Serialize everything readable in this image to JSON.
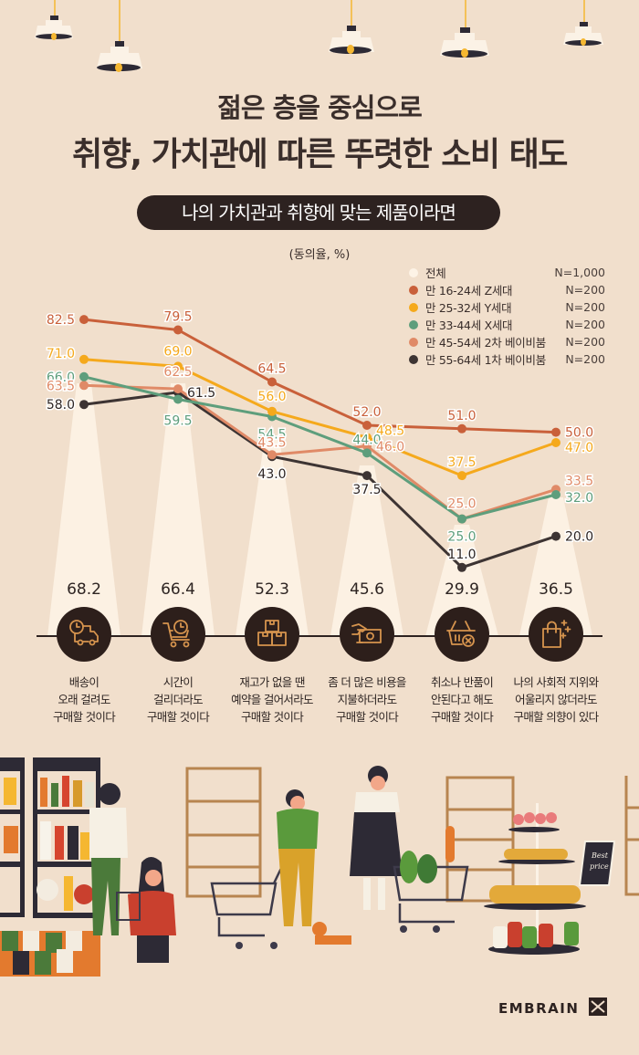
{
  "header": {
    "title_line1": "젊은 층을 중심으로",
    "title_line2": "취향, 가치관에 따른 뚜렷한 소비 태도",
    "subtitle_pill": "나의 가치관과 취향에 맞는 제품이라면",
    "unit_label": "(동의율, %)"
  },
  "legend": [
    {
      "label": "전체",
      "n": "N=1,000",
      "color": "#fdf3e6"
    },
    {
      "label": "만 16-24세 Z세대",
      "n": "N=200",
      "color": "#c9603a"
    },
    {
      "label": "만 25-32세 Y세대",
      "n": "N=200",
      "color": "#f5a91c"
    },
    {
      "label": "만 33-44세 X세대",
      "n": "N=200",
      "color": "#5e9e7c"
    },
    {
      "label": "만 45-54세 2차 베이비붐",
      "n": "N=200",
      "color": "#e08a67"
    },
    {
      "label": "만 55-64세 1차 베이비붐",
      "n": "N=200",
      "color": "#3d3433"
    }
  ],
  "categories": [
    {
      "line1": "배송이",
      "line2": "오래 걸려도",
      "line3": "구매할 것이다",
      "total": "68.2",
      "icon": "delivery-truck-clock-icon"
    },
    {
      "line1": "시간이",
      "line2": "걸리더라도",
      "line3": "구매할 것이다",
      "total": "66.4",
      "icon": "cart-clock-icon"
    },
    {
      "line1": "재고가 없을 땐",
      "line2": "예약을 걸어서라도",
      "line3": "구매할 것이다",
      "total": "52.3",
      "icon": "boxes-stack-icon"
    },
    {
      "line1": "좀 더 많은 비용을",
      "line2": "지불하더라도",
      "line3": "구매할 것이다",
      "total": "45.6",
      "icon": "hand-money-icon"
    },
    {
      "line1": "취소나 반품이",
      "line2": "안된다고 해도",
      "line3": "구매할 것이다",
      "total": "29.9",
      "icon": "basket-cancel-icon"
    },
    {
      "line1": "나의 사회적 지위와",
      "line2": "어울리지 않더라도",
      "line3": "구매할 의향이 있다",
      "total": "36.5",
      "icon": "shopping-bag-sparkle-icon"
    }
  ],
  "brand": "EMBRAIN",
  "chart_data": {
    "type": "line",
    "title": "나의 가치관과 취향에 맞는 제품이라면",
    "ylabel": "동의율, %",
    "categories": [
      "배송이 오래 걸려도 구매할 것이다",
      "시간이 걸리더라도 구매할 것이다",
      "재고가 없을 땐 예약을 걸어서라도 구매할 것이다",
      "좀 더 많은 비용을 지불하더라도 구매할 것이다",
      "취소나 반품이 안된다고 해도 구매할 것이다",
      "나의 사회적 지위와 어울리지 않더라도 구매할 의향이 있다"
    ],
    "series": [
      {
        "name": "전체 (N=1,000)",
        "values": [
          68.2,
          66.4,
          52.3,
          45.6,
          29.9,
          36.5
        ],
        "style": "bars (light spotlight)"
      },
      {
        "name": "만 16-24세 Z세대 (N=200)",
        "values": [
          82.5,
          79.5,
          64.5,
          52.0,
          51.0,
          50.0
        ]
      },
      {
        "name": "만 25-32세 Y세대 (N=200)",
        "values": [
          71.0,
          69.0,
          56.0,
          48.5,
          37.5,
          47.0
        ]
      },
      {
        "name": "만 33-44세 X세대 (N=200)",
        "values": [
          66.0,
          59.5,
          54.5,
          44.0,
          25.0,
          32.0
        ]
      },
      {
        "name": "만 45-54세 2차 베이비붐 (N=200)",
        "values": [
          63.5,
          62.5,
          43.5,
          46.0,
          25.0,
          33.5
        ]
      },
      {
        "name": "만 55-64세 1차 베이비붐 (N=200)",
        "values": [
          58.0,
          61.5,
          43.0,
          37.5,
          11.0,
          20.0
        ]
      }
    ],
    "legend_position": "top-right",
    "grid": false
  }
}
